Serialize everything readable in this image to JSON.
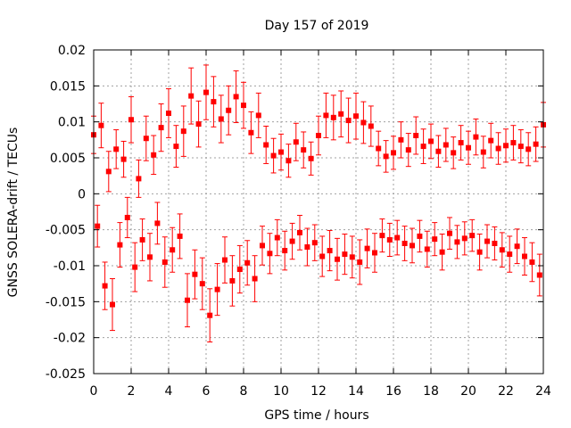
{
  "chart_data": {
    "type": "scatter",
    "title": "Day 157 of 2019",
    "xlabel": "GPS time / hours",
    "ylabel": "GNSS SOLERA-drift / TECUs",
    "xlim": [
      0,
      24
    ],
    "ylim": [
      -0.025,
      0.02
    ],
    "xticks": [
      "0",
      "2",
      "4",
      "6",
      "8",
      "10",
      "12",
      "14",
      "16",
      "18",
      "20",
      "22",
      "24"
    ],
    "yticks": [
      "-0.025",
      "-0.02",
      "-0.015",
      "-0.01",
      "-0.005",
      "0",
      "0.005",
      "0.01",
      "0.015",
      "0.02"
    ],
    "grid": true,
    "error_bars": true,
    "series": [
      {
        "color": "#ff0000",
        "marker": "square",
        "x": [
          0.0,
          0.2,
          0.4,
          0.6,
          0.8,
          1.0,
          1.2,
          1.4,
          1.6,
          1.8,
          2.0,
          2.2,
          2.4,
          2.6,
          2.8,
          3.0,
          3.2,
          3.4,
          3.6,
          3.8,
          4.0,
          4.2,
          4.4,
          4.6,
          4.8,
          5.0,
          5.2,
          5.4,
          5.6,
          5.8,
          6.0,
          6.2,
          6.4,
          6.6,
          6.8,
          7.0,
          7.2,
          7.4,
          7.6,
          7.8,
          8.0,
          8.2,
          8.4,
          8.6,
          8.8,
          9.0,
          9.2,
          9.4,
          9.6,
          9.8,
          10.0,
          10.2,
          10.4,
          10.6,
          10.8,
          11.0,
          11.2,
          11.4,
          11.6,
          11.8,
          12.0,
          12.2,
          12.4,
          12.6,
          12.8,
          13.0,
          13.2,
          13.4,
          13.6,
          13.8,
          14.0,
          14.2,
          14.4,
          14.6,
          14.8,
          15.0,
          15.2,
          15.4,
          15.6,
          15.8,
          16.0,
          16.2,
          16.4,
          16.6,
          16.8,
          17.0,
          17.2,
          17.4,
          17.6,
          17.8,
          18.0,
          18.2,
          18.4,
          18.6,
          18.8,
          19.0,
          19.2,
          19.4,
          19.6,
          19.8,
          20.0,
          20.2,
          20.4,
          20.6,
          20.8,
          21.0,
          21.2,
          21.4,
          21.6,
          21.8,
          22.0,
          22.2,
          22.4,
          22.6,
          22.8,
          23.0,
          23.2,
          23.4,
          23.6,
          23.8,
          24.0
        ],
        "y": [
          0.0082,
          -0.0045,
          0.0095,
          -0.0128,
          0.0031,
          -0.0154,
          0.0062,
          -0.0071,
          0.0048,
          -0.0033,
          0.0103,
          -0.0102,
          0.0021,
          -0.0064,
          0.0077,
          -0.0088,
          0.0054,
          -0.0041,
          0.0092,
          -0.0095,
          0.0112,
          -0.0078,
          0.0066,
          -0.0059,
          0.0087,
          -0.0148,
          0.0136,
          -0.0112,
          0.0097,
          -0.0125,
          0.0141,
          -0.0169,
          0.0128,
          -0.0133,
          0.0104,
          -0.0092,
          0.0116,
          -0.0121,
          0.0135,
          -0.0105,
          0.0123,
          -0.0096,
          0.0085,
          -0.0118,
          0.0109,
          -0.0072,
          0.0068,
          -0.0083,
          0.0053,
          -0.0061,
          0.0058,
          -0.0079,
          0.0046,
          -0.0066,
          0.0072,
          -0.0054,
          0.0061,
          -0.0074,
          0.0049,
          -0.0068,
          0.0081,
          -0.0087,
          0.0109,
          -0.0079,
          0.0106,
          -0.0091,
          0.0111,
          -0.0084,
          0.0102,
          -0.0088,
          0.0108,
          -0.0095,
          0.0099,
          -0.0076,
          0.0094,
          -0.0082,
          0.0063,
          -0.0058,
          0.0052,
          -0.0064,
          0.0057,
          -0.0061,
          0.0075,
          -0.0069,
          0.0061,
          -0.0072,
          0.0081,
          -0.0059,
          0.0066,
          -0.0077,
          0.0073,
          -0.0063,
          0.0059,
          -0.0081,
          0.0068,
          -0.0055,
          0.0057,
          -0.0067,
          0.0071,
          -0.0062,
          0.0064,
          -0.0058,
          0.0079,
          -0.0081,
          0.0058,
          -0.0066,
          0.0074,
          -0.0069,
          0.0063,
          -0.0078,
          0.0067,
          -0.0084,
          0.0071,
          -0.0073,
          0.0066,
          -0.0087,
          0.0062,
          -0.0095,
          0.0069,
          -0.0113,
          0.0096
        ],
        "err": [
          0.0026,
          0.0029,
          0.0031,
          0.0033,
          0.0028,
          0.0036,
          0.0027,
          0.0031,
          0.0025,
          0.0028,
          0.0032,
          0.0034,
          0.0026,
          0.0029,
          0.0031,
          0.0033,
          0.0027,
          0.0029,
          0.0033,
          0.0035,
          0.0034,
          0.0031,
          0.0029,
          0.0031,
          0.0035,
          0.0037,
          0.0039,
          0.0034,
          0.0032,
          0.0036,
          0.0038,
          0.0037,
          0.0035,
          0.0036,
          0.0033,
          0.0032,
          0.0034,
          0.0035,
          0.0036,
          0.0033,
          0.0032,
          0.0031,
          0.0029,
          0.0032,
          0.0031,
          0.0027,
          0.0026,
          0.0028,
          0.0024,
          0.0025,
          0.0025,
          0.0027,
          0.0023,
          0.0025,
          0.0026,
          0.0024,
          0.0025,
          0.0026,
          0.0023,
          0.0025,
          0.0027,
          0.0028,
          0.0031,
          0.0028,
          0.0031,
          0.0029,
          0.0032,
          0.0028,
          0.0031,
          0.0029,
          0.0032,
          0.0031,
          0.0029,
          0.0027,
          0.0028,
          0.0027,
          0.0024,
          0.0023,
          0.0022,
          0.0023,
          0.0023,
          0.0024,
          0.0025,
          0.0024,
          0.0023,
          0.0024,
          0.0026,
          0.0022,
          0.0024,
          0.0025,
          0.0024,
          0.0023,
          0.0022,
          0.0025,
          0.0023,
          0.0022,
          0.0022,
          0.0023,
          0.0024,
          0.0023,
          0.0023,
          0.0022,
          0.0025,
          0.0025,
          0.0022,
          0.0023,
          0.0024,
          0.0023,
          0.0022,
          0.0024,
          0.0023,
          0.0025,
          0.0024,
          0.0024,
          0.0023,
          0.0026,
          0.0023,
          0.0027,
          0.0024,
          0.0029,
          0.0031
        ]
      }
    ]
  }
}
